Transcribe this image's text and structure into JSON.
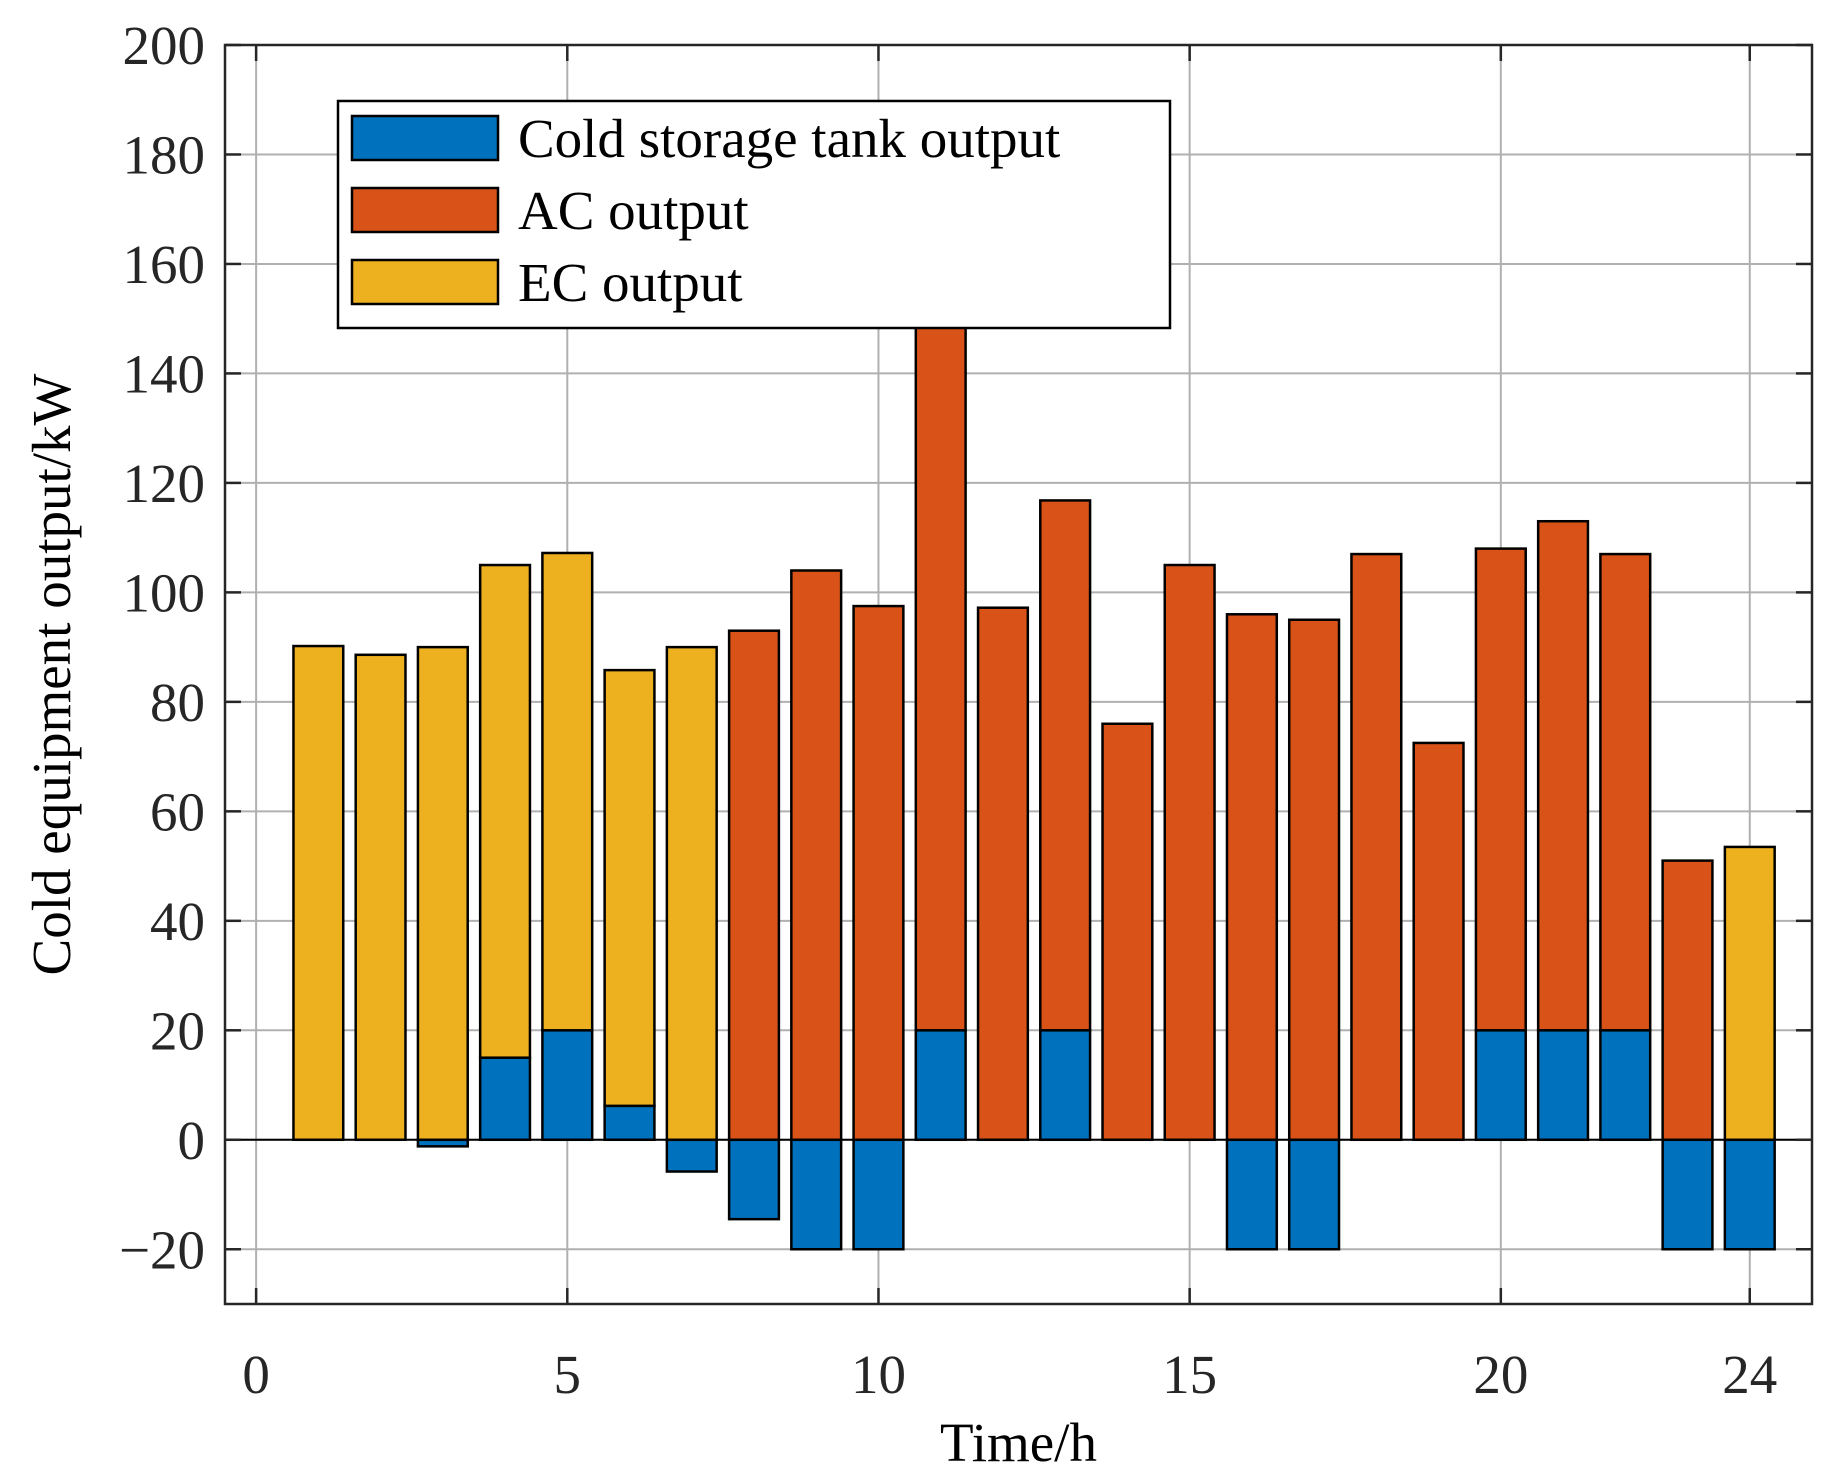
{
  "chart_data": {
    "type": "bar",
    "stacked": true,
    "title": "",
    "xlabel": "Time/h",
    "ylabel": "Cold equipment output/kW",
    "xlim": [
      -0.5,
      25
    ],
    "ylim": [
      -30,
      200
    ],
    "xticks": [
      0,
      5,
      10,
      15,
      20,
      24
    ],
    "yticks": [
      -20,
      0,
      20,
      40,
      60,
      80,
      100,
      120,
      140,
      160,
      180,
      200
    ],
    "ytick_labels": [
      "−20",
      "0",
      "20",
      "40",
      "60",
      "80",
      "100",
      "120",
      "140",
      "160",
      "180",
      "200"
    ],
    "grid": true,
    "legend_position": "top-left",
    "categories": [
      1,
      2,
      3,
      4,
      5,
      6,
      7,
      8,
      9,
      10,
      11,
      12,
      13,
      14,
      15,
      16,
      17,
      18,
      19,
      20,
      21,
      22,
      23,
      24
    ],
    "series": [
      {
        "name": "Cold storage tank output",
        "color": "#0072BD",
        "values": [
          0,
          0,
          -1.2,
          15,
          20,
          6.2,
          -5.8,
          -14.5,
          -20,
          -20,
          20,
          0,
          20,
          0,
          0,
          -20,
          -20,
          0,
          0,
          20,
          20,
          20,
          -20,
          -20
        ]
      },
      {
        "name": "AC output",
        "color": "#D95319",
        "values": [
          0,
          0,
          0,
          0,
          0,
          0,
          0,
          93,
          104,
          97.5,
          130,
          97.2,
          96.8,
          76,
          105,
          96,
          95,
          107,
          72.5,
          88,
          93,
          87,
          51,
          0
        ]
      },
      {
        "name": "EC output",
        "color": "#EDB120",
        "values": [
          90.2,
          88.6,
          90,
          90,
          87.2,
          79.6,
          90,
          0,
          0,
          0,
          0,
          0,
          0,
          0,
          0,
          0,
          0,
          0,
          0,
          0,
          0,
          0,
          0,
          53.5
        ]
      }
    ]
  }
}
